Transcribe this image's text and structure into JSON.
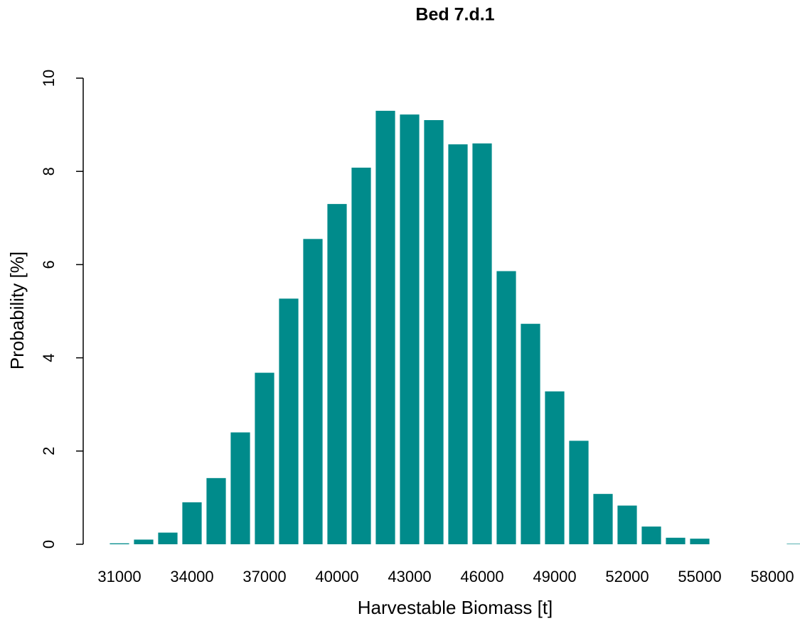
{
  "chart_data": {
    "type": "bar",
    "title": "Bed 7.d.1",
    "x_label": "Harvestable Biomass  [t]",
    "y_label": "Probability  [%]",
    "categories": [
      "31000",
      null,
      null,
      "34000",
      null,
      null,
      "37000",
      null,
      null,
      "40000",
      null,
      null,
      "43000",
      null,
      null,
      "46000",
      null,
      null,
      "49000",
      null,
      null,
      "52000",
      null,
      null,
      "55000",
      null,
      null,
      "58000",
      null
    ],
    "values": [
      0.02,
      0.1,
      0.25,
      0.9,
      1.42,
      2.4,
      3.68,
      5.27,
      6.55,
      7.3,
      8.08,
      9.3,
      9.22,
      9.1,
      8.58,
      8.6,
      5.86,
      4.73,
      3.28,
      2.22,
      1.08,
      0.83,
      0.38,
      0.14,
      0.12,
      0,
      0,
      0,
      0.01
    ],
    "color": "#008b8b",
    "ylim": [
      0,
      10
    ],
    "yticks": [
      0,
      2,
      4,
      6,
      8,
      10
    ],
    "grid": false
  }
}
